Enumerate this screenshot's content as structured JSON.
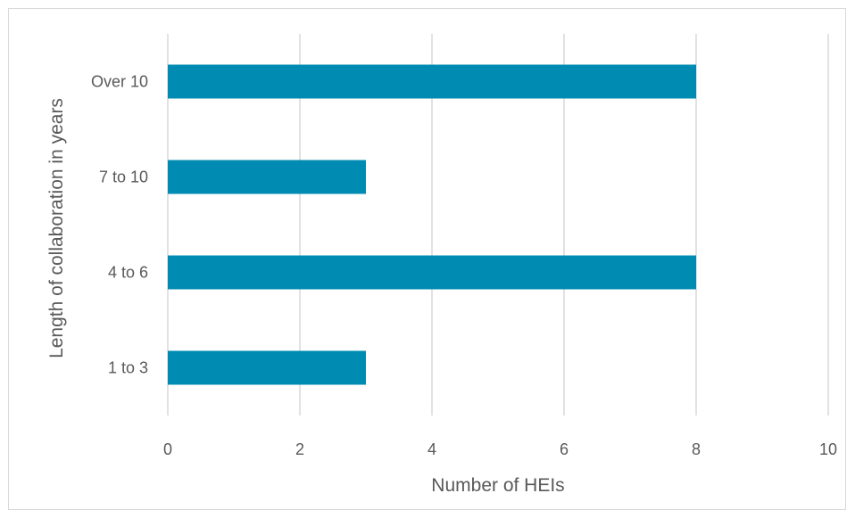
{
  "chart_data": {
    "type": "bar",
    "orientation": "horizontal",
    "categories": [
      "1 to 3",
      "4 to 6",
      "7 to 10",
      "Over 10"
    ],
    "values": [
      3,
      8,
      3,
      8
    ],
    "xlabel": "Number of HEIs",
    "ylabel": "Length of collaboration in years",
    "xlim": [
      0,
      10
    ],
    "xticks": [
      "0",
      "2",
      "4",
      "6",
      "8",
      "10"
    ],
    "grid": "vertical",
    "legend": "none",
    "bar_color": "#008bb2",
    "grid_color": "#d9d9d9",
    "text_color": "#595959"
  }
}
